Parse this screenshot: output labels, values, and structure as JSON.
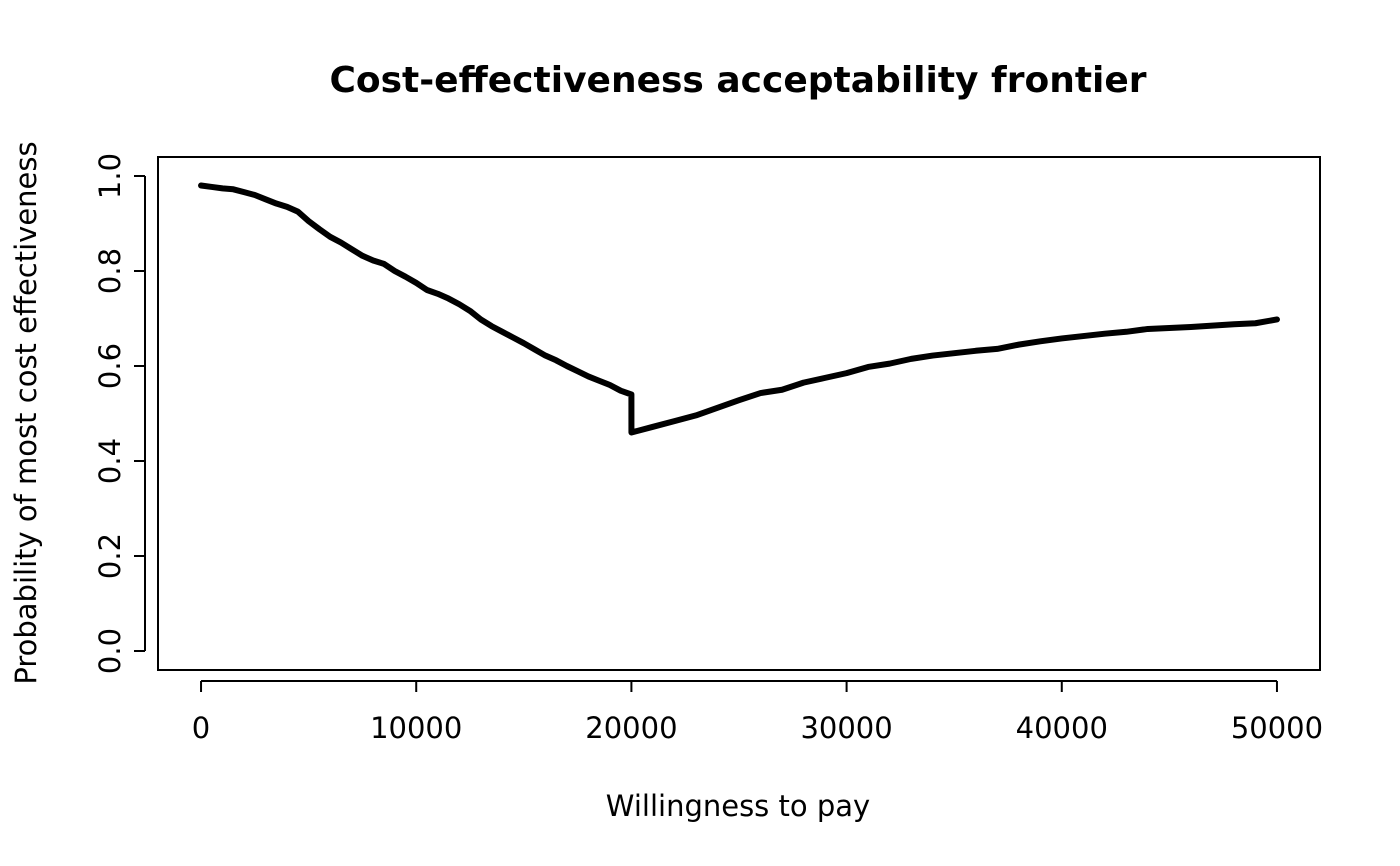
{
  "chart_data": {
    "type": "line",
    "title": "Cost-effectiveness acceptability frontier",
    "xlabel": "Willingness to pay",
    "ylabel": "Probability of most cost effectiveness",
    "xlim": [
      -2000,
      52000
    ],
    "ylim": [
      -0.04,
      1.04
    ],
    "x_ticks": [
      0,
      10000,
      20000,
      30000,
      40000,
      50000
    ],
    "x_tick_labels": [
      "0",
      "10000",
      "20000",
      "30000",
      "40000",
      "50000"
    ],
    "y_ticks": [
      0.0,
      0.2,
      0.4,
      0.6,
      0.8,
      1.0
    ],
    "y_tick_labels": [
      "0.0",
      "0.2",
      "0.4",
      "0.6",
      "0.8",
      "1.0"
    ],
    "grid": false,
    "legend": "none",
    "line_color": "#000000",
    "series": [
      {
        "x": [
          0,
          500,
          1000,
          1500,
          2000,
          2500,
          3000,
          3500,
          4000,
          4500,
          5000,
          5500,
          6000,
          6500,
          7000,
          7500,
          8000,
          8500,
          9000,
          9500,
          10000,
          10500,
          11000,
          11500,
          12000,
          12500,
          13000,
          13500,
          14000,
          14500,
          15000,
          15500,
          16000,
          16500,
          17000,
          17500,
          18000,
          18500,
          19000,
          19500,
          20000,
          20001,
          21000,
          22000,
          23000,
          24000,
          25000,
          26000,
          27000,
          28000,
          29000,
          30000,
          31000,
          32000,
          33000,
          34000,
          35000,
          36000,
          37000,
          38000,
          39000,
          40000,
          41000,
          42000,
          43000,
          44000,
          45000,
          46000,
          47000,
          48000,
          49000,
          50000
        ],
        "y": [
          0.98,
          0.977,
          0.974,
          0.972,
          0.966,
          0.96,
          0.951,
          0.942,
          0.935,
          0.925,
          0.905,
          0.888,
          0.872,
          0.86,
          0.846,
          0.832,
          0.822,
          0.815,
          0.8,
          0.788,
          0.775,
          0.76,
          0.752,
          0.742,
          0.73,
          0.716,
          0.698,
          0.684,
          0.672,
          0.66,
          0.648,
          0.635,
          0.622,
          0.612,
          0.6,
          0.589,
          0.578,
          0.569,
          0.56,
          0.548,
          0.54,
          0.46,
          0.472,
          0.484,
          0.496,
          0.512,
          0.528,
          0.543,
          0.55,
          0.565,
          0.575,
          0.585,
          0.598,
          0.605,
          0.615,
          0.622,
          0.627,
          0.632,
          0.636,
          0.645,
          0.652,
          0.658,
          0.663,
          0.668,
          0.672,
          0.678,
          0.68,
          0.682,
          0.685,
          0.688,
          0.69,
          0.698
        ]
      }
    ]
  }
}
